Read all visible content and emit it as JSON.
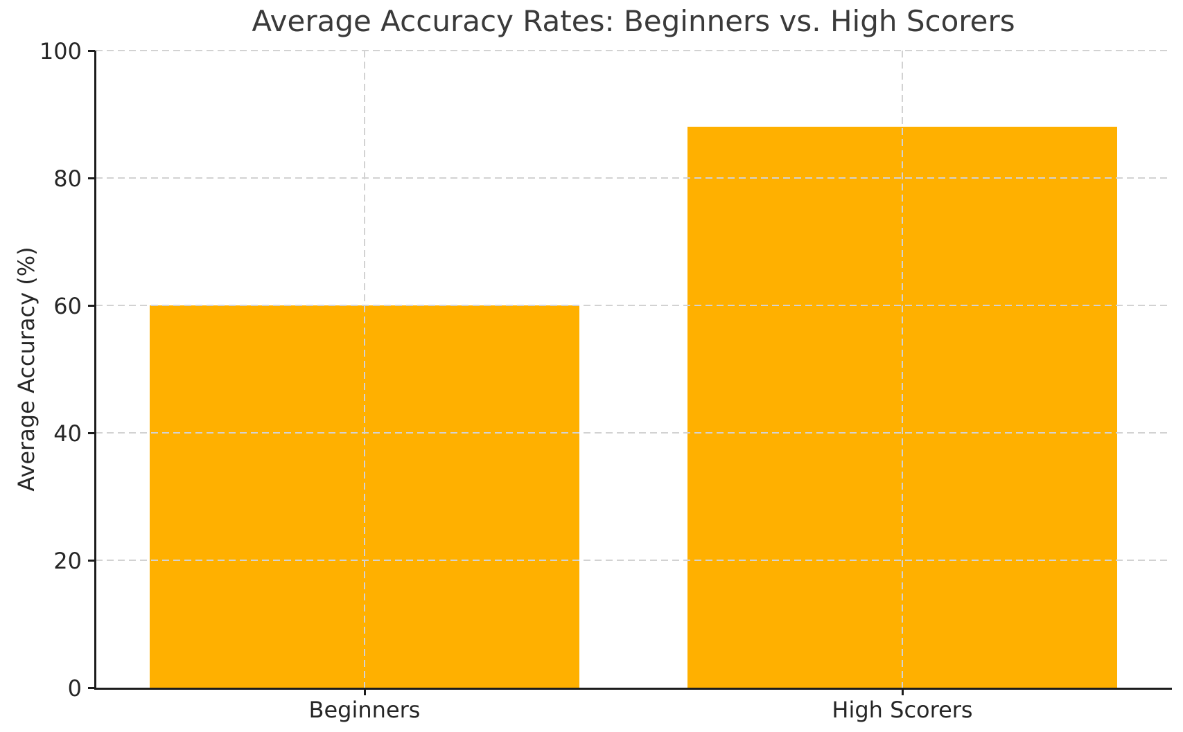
{
  "chart_data": {
    "type": "bar",
    "title": "Average Accuracy Rates: Beginners vs. High Scorers",
    "xlabel": "",
    "ylabel": "Average Accuracy (%)",
    "categories": [
      "Beginners",
      "High Scorers"
    ],
    "values": [
      60,
      88
    ],
    "ylim": [
      0,
      100
    ],
    "yticks": [
      0,
      20,
      40,
      60,
      80,
      100
    ],
    "bar_width_fraction": 0.8,
    "grid": "dashed, both axes, drawn above bars",
    "legend": "none",
    "colors": {
      "bar": "#FFB000",
      "grid": "#d2d2d2",
      "spine": "#1c1c1c",
      "title_text": "#3a3a3a",
      "tick_text": "#262626"
    }
  }
}
